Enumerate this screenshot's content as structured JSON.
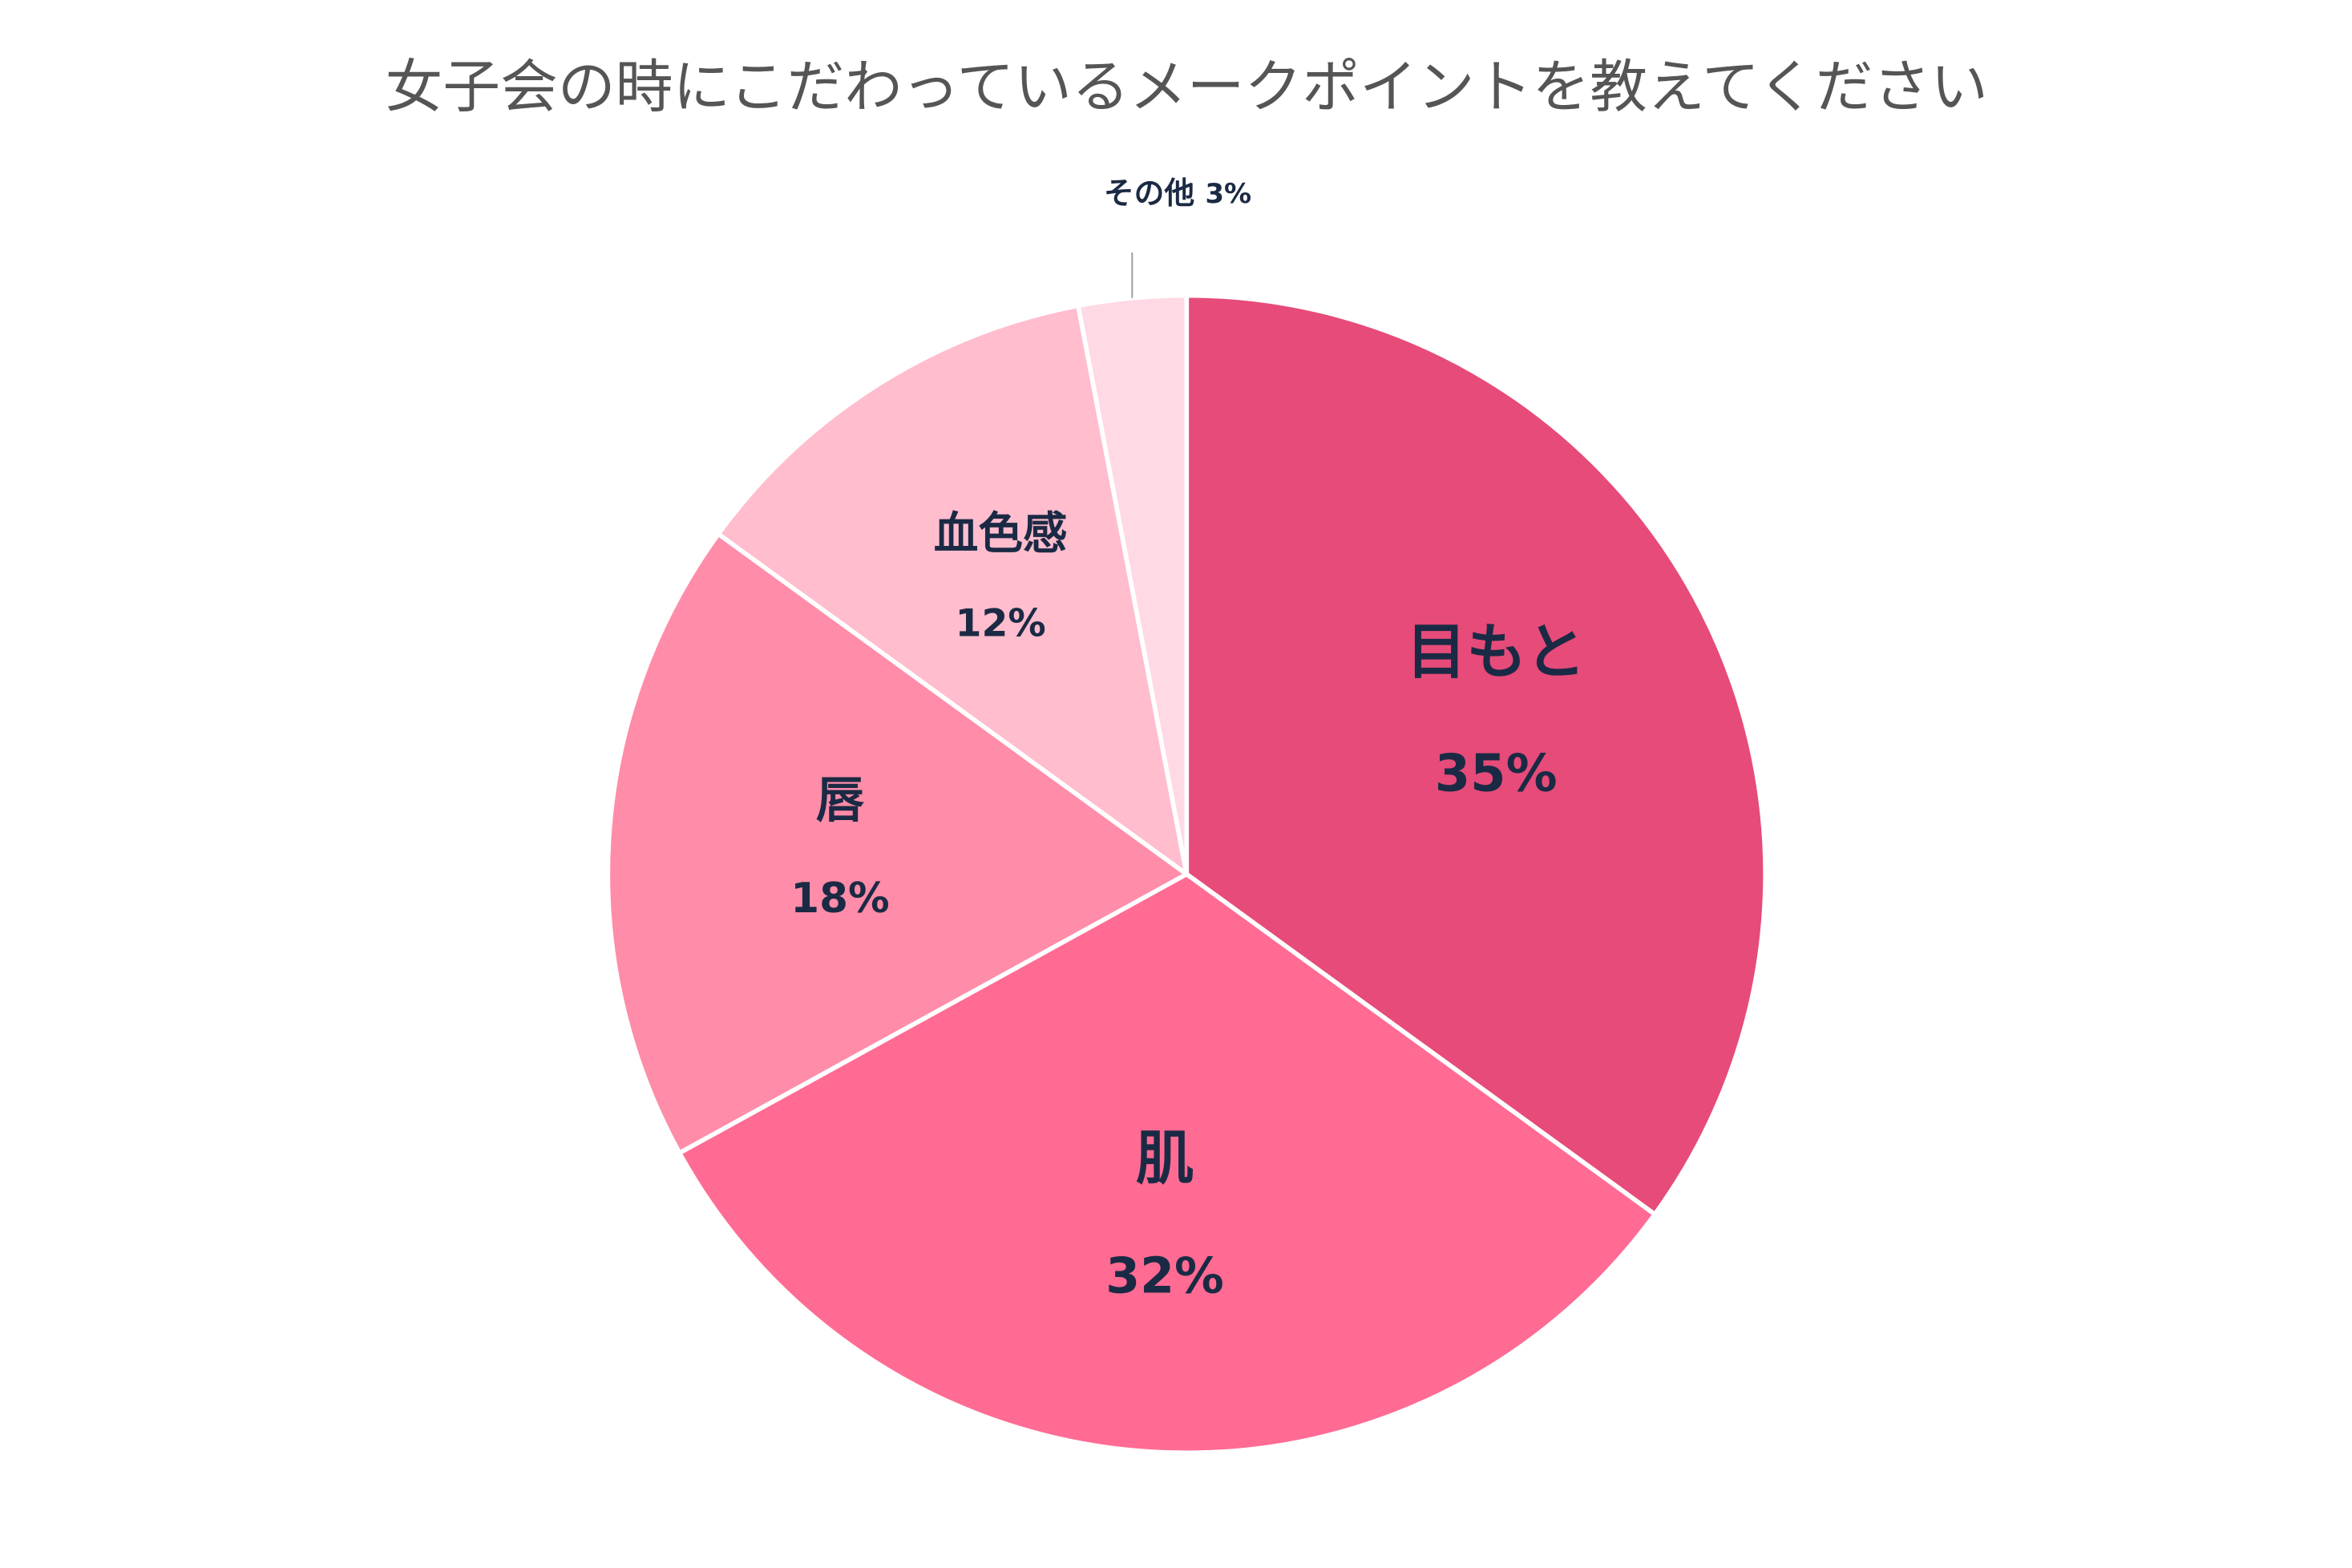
{
  "chart_data": {
    "type": "pie",
    "title": "女子会の時にこだわっているメークポイントを教えてください",
    "categories": [
      "目もと",
      "肌",
      "唇",
      "血色感",
      "その他"
    ],
    "values": [
      35,
      32,
      18,
      12,
      3
    ],
    "value_labels": [
      "35%",
      "32%",
      "18%",
      "12%",
      "3%"
    ],
    "colors": [
      "#e64b79",
      "#ff6b93",
      "#ff8ca8",
      "#ffbdce",
      "#ffd9e3"
    ]
  }
}
